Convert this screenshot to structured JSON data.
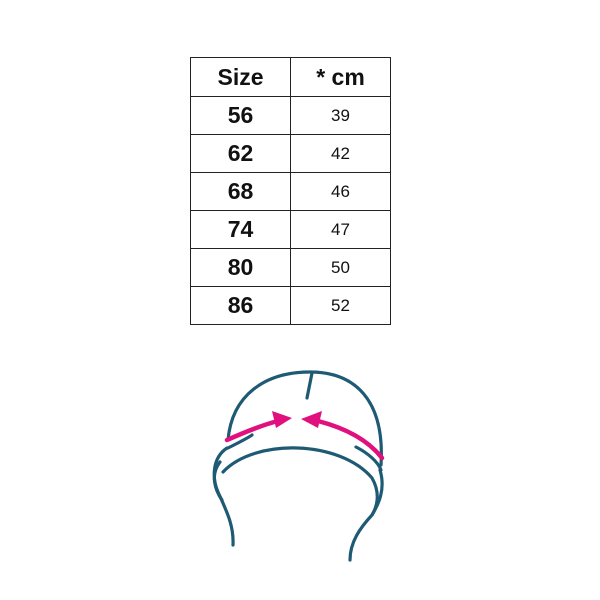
{
  "table": {
    "headers": [
      "Size",
      "* cm"
    ],
    "rows": [
      {
        "size": "56",
        "cm": "39"
      },
      {
        "size": "62",
        "cm": "42"
      },
      {
        "size": "68",
        "cm": "46"
      },
      {
        "size": "74",
        "cm": "47"
      },
      {
        "size": "80",
        "cm": "50"
      },
      {
        "size": "86",
        "cm": "52"
      }
    ]
  },
  "illustration": {
    "icon": "hat-head-circumference-icon",
    "line_color": "#1f5a74",
    "arrow_color": "#e0107f"
  }
}
